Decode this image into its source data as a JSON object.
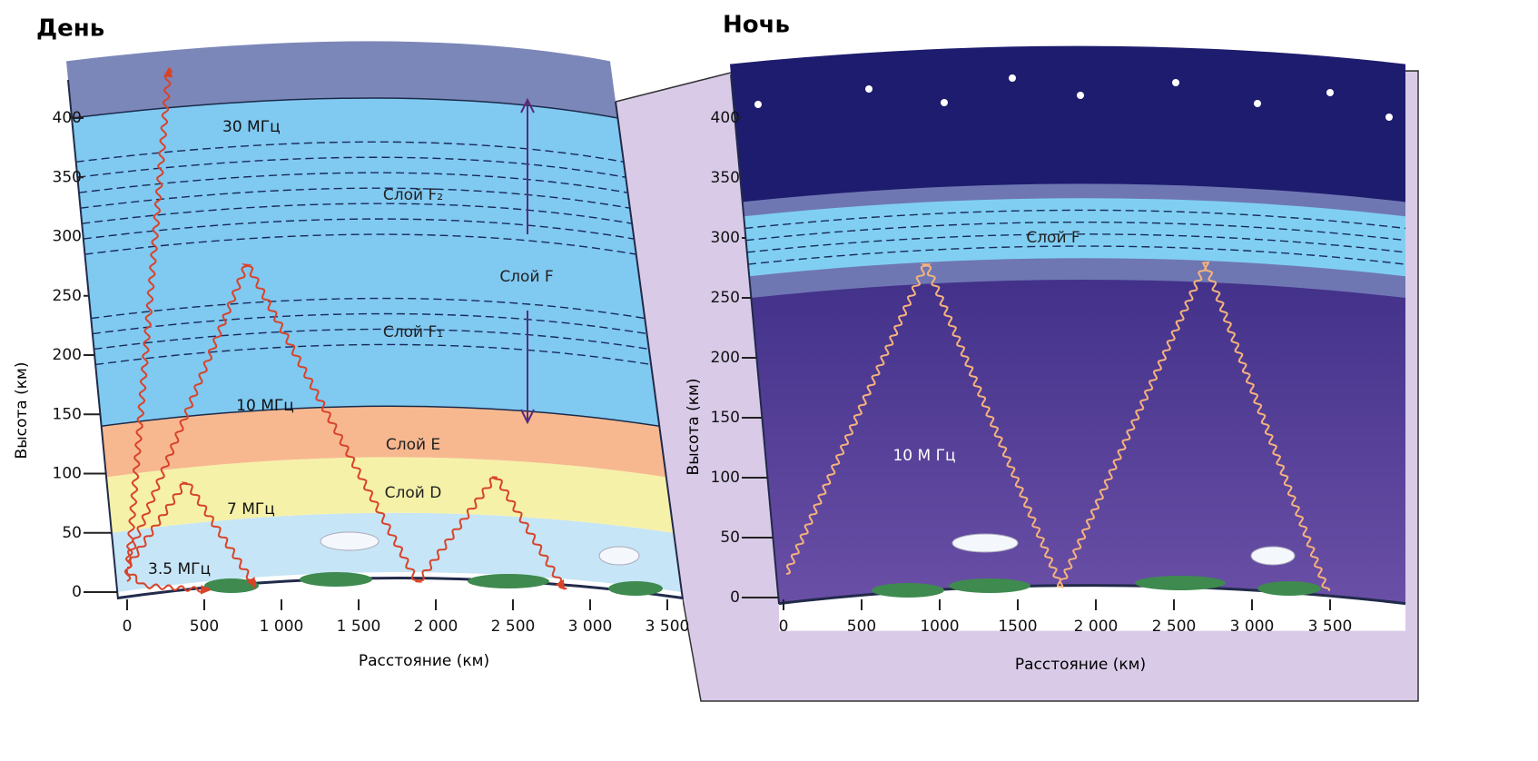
{
  "day": {
    "title": "День",
    "y_axis_label": "Высота (км)",
    "x_axis_label": "Расстояние (км)",
    "y_ticks": [
      "0",
      "50",
      "100",
      "150",
      "200",
      "250",
      "300",
      "350",
      "400"
    ],
    "x_ticks": [
      "0",
      "500",
      "1 000",
      "1 500",
      "2 000",
      "2 500",
      "3 000",
      "3 500"
    ],
    "layers": {
      "f2": "Слой F₂",
      "f": "Слой F",
      "f1": "Слой F₁",
      "e": "Слой E",
      "d": "Слой D"
    },
    "waves": [
      "30 МГц",
      "10 МГц",
      "7 МГц",
      "3.5 МГц"
    ]
  },
  "night": {
    "title": "Ночь",
    "y_axis_label": "Высота (км)",
    "x_axis_label": "Расстояние (км)",
    "y_ticks": [
      "0",
      "50",
      "100",
      "150",
      "200",
      "250",
      "300",
      "350",
      "400"
    ],
    "x_ticks": [
      "0",
      "500",
      "1000",
      "1500",
      "2 000",
      "2 500",
      "3 000",
      "3 500"
    ],
    "layer": "Слой F",
    "wave": "10 М Гц"
  }
}
